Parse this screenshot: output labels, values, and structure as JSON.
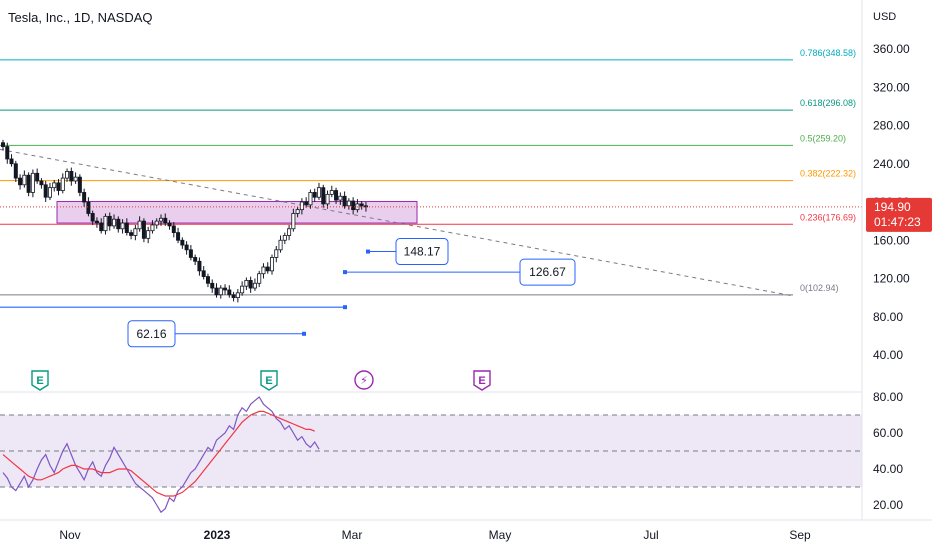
{
  "header": {
    "title": "Tesla, Inc., 1D, NASDAQ"
  },
  "colors": {
    "up": "#26a69a",
    "down": "#ef5350",
    "candle_body": "#131722",
    "fib_0786": "#00acc1",
    "fib_0618": "#089981",
    "fib_05": "#4caf50",
    "fib_0382": "#ff9800",
    "fib_0236": "#f23645",
    "fib_0": "#787b86",
    "rsi_line": "#7e57c2",
    "rsi_ma": "#f23645",
    "rsi_band": "#ede7f6",
    "zone_fill": "#e1bee7",
    "zone_border": "#9c27b0",
    "label_border": "#2962ff",
    "price_tag": "#e53935",
    "axis_text": "#131722"
  },
  "chart_data": {
    "type": "candlestick",
    "currency": "USD",
    "price_axis_ticks": [
      "360.00",
      "320.00",
      "280.00",
      "240.00",
      "200.00",
      "160.00",
      "120.00",
      "80.00",
      "40.00"
    ],
    "price_axis_values": [
      360,
      320,
      280,
      240,
      200,
      160,
      120,
      80,
      40
    ],
    "time_axis_labels": [
      "Nov",
      "2023",
      "Mar",
      "May",
      "Jul",
      "Sep"
    ],
    "last_price": {
      "value": 194.9,
      "label": "194.90",
      "countdown": "01:47:23"
    },
    "fib_levels": [
      {
        "ratio": "0.786",
        "price": 348.58,
        "label": "0.786(348.58)",
        "color_key": "fib_0786"
      },
      {
        "ratio": "0.618",
        "price": 296.08,
        "label": "0.618(296.08)",
        "color_key": "fib_0618"
      },
      {
        "ratio": "0.5",
        "price": 259.2,
        "label": "0.5(259.20)",
        "color_key": "fib_05"
      },
      {
        "ratio": "0.382",
        "price": 222.32,
        "label": "0.382(222.32)",
        "color_key": "fib_0382"
      },
      {
        "ratio": "0.236",
        "price": 176.69,
        "label": "0.236(176.69)",
        "color_key": "fib_0236"
      },
      {
        "ratio": "0",
        "price": 102.94,
        "label": "0(102.94)",
        "color_key": "fib_0"
      }
    ],
    "price_labels": [
      {
        "text": "148.17",
        "value": 148.17
      },
      {
        "text": "126.67",
        "value": 126.67
      },
      {
        "text": "62.16",
        "value": 62.16
      }
    ],
    "events": [
      {
        "type": "earnings",
        "glyph": "E"
      },
      {
        "type": "earnings",
        "glyph": "E"
      },
      {
        "type": "split",
        "glyph": "⚡"
      },
      {
        "type": "earnings-upcoming",
        "glyph": "E"
      }
    ],
    "closes": [
      258,
      245,
      240,
      225,
      218,
      228,
      210,
      230,
      222,
      218,
      205,
      215,
      220,
      212,
      225,
      232,
      222,
      226,
      210,
      200,
      188,
      180,
      178,
      170,
      185,
      175,
      182,
      172,
      178,
      168,
      165,
      172,
      180,
      162,
      170,
      176,
      180,
      183,
      178,
      175,
      168,
      160,
      155,
      150,
      142,
      138,
      128,
      122,
      115,
      110,
      103,
      110,
      108,
      103,
      100,
      105,
      112,
      118,
      110,
      115,
      125,
      132,
      128,
      142,
      150,
      160,
      165,
      172,
      188,
      192,
      200,
      197,
      210,
      205,
      215,
      198,
      208,
      212,
      202,
      206,
      196,
      201,
      192,
      198,
      196,
      194.9
    ],
    "rsi": {
      "axis_ticks": [
        "80.00",
        "60.00",
        "40.00",
        "20.00"
      ],
      "axis_values": [
        80,
        60,
        40,
        20
      ],
      "bands": [
        70,
        50,
        30
      ],
      "values": [
        38,
        35,
        30,
        28,
        32,
        36,
        30,
        34,
        40,
        45,
        48,
        42,
        38,
        44,
        50,
        54,
        48,
        42,
        38,
        34,
        40,
        44,
        38,
        36,
        42,
        46,
        52,
        48,
        44,
        40,
        36,
        32,
        30,
        28,
        26,
        24,
        20,
        16,
        18,
        24,
        22,
        28,
        30,
        34,
        38,
        40,
        44,
        48,
        52,
        50,
        56,
        58,
        60,
        64,
        62,
        70,
        74,
        72,
        76,
        78,
        80,
        76,
        74,
        72,
        68,
        66,
        62,
        64,
        60,
        56,
        58,
        54,
        52,
        55,
        51
      ],
      "ma_values": [
        48,
        46,
        44,
        42,
        40,
        38,
        36,
        35,
        34,
        34,
        35,
        36,
        37,
        38,
        40,
        41,
        42,
        42,
        41,
        40,
        40,
        40,
        39,
        38,
        38,
        38,
        39,
        40,
        40,
        40,
        39,
        37,
        35,
        33,
        31,
        29,
        27,
        26,
        25,
        25,
        25,
        26,
        27,
        29,
        31,
        33,
        36,
        39,
        42,
        45,
        48,
        51,
        54,
        57,
        60,
        63,
        66,
        68,
        70,
        71,
        72,
        72,
        71,
        70,
        69,
        68,
        67,
        66,
        65,
        64,
        63,
        62,
        62,
        61
      ]
    }
  }
}
